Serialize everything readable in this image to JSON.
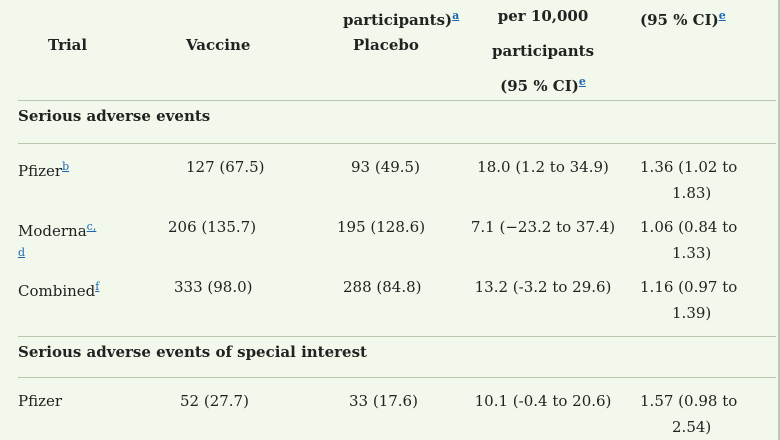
{
  "header": {
    "participants_label": "participants)",
    "participants_ref": "a",
    "per_label": "per 10,000",
    "per_label2": "participants",
    "ci_label": "(95 % CI)",
    "ci_ref": "e",
    "ratio_ci_label": "(95 % CI)",
    "ratio_ci_ref": "e",
    "col_trial": "Trial",
    "col_vaccine": "Vaccine",
    "col_placebo": "Placebo"
  },
  "sections": [
    {
      "title": "Serious adverse events",
      "rows": [
        {
          "trial": "Pfizer",
          "ref": "b",
          "vaccine": "127 (67.5)",
          "placebo": "93 (49.5)",
          "diff": "18.0 (1.2 to 34.9)",
          "ratio1": "1.36 (1.02 to",
          "ratio2": "1.83)"
        },
        {
          "trial": "Moderna",
          "ref": "c,",
          "ref2": "d",
          "vaccine": "206 (135.7)",
          "placebo": "195 (128.6)",
          "diff": "7.1 (−23.2 to 37.4)",
          "ratio1": "1.06 (0.84 to",
          "ratio2": "1.33)"
        },
        {
          "trial": "Combined",
          "ref": "f",
          "vaccine": "333 (98.0)",
          "placebo": "288 (84.8)",
          "diff": "13.2 (-3.2 to 29.6)",
          "ratio1": "1.16 (0.97 to",
          "ratio2": "1.39)"
        }
      ]
    },
    {
      "title": "Serious adverse events of special interest",
      "rows": [
        {
          "trial": "Pfizer",
          "vaccine": "52 (27.7)",
          "placebo": "33 (17.6)",
          "diff": "10.1 (-0.4 to 20.6)",
          "ratio1": "1.57 (0.98 to",
          "ratio2": "2.54)"
        }
      ]
    }
  ]
}
